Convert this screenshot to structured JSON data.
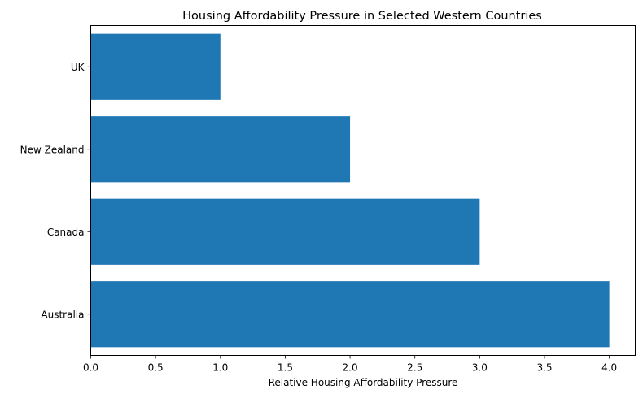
{
  "chart_data": {
    "type": "bar",
    "orientation": "horizontal",
    "title": "Housing Affordability Pressure in Selected Western Countries",
    "xlabel": "Relative Housing Affordability Pressure",
    "ylabel": "",
    "categories": [
      "Australia",
      "Canada",
      "New Zealand",
      "UK"
    ],
    "values": [
      4,
      3,
      2,
      1
    ],
    "xlim": [
      0,
      4.2
    ],
    "xticks": [
      0.0,
      0.5,
      1.0,
      1.5,
      2.0,
      2.5,
      3.0,
      3.5,
      4.0
    ],
    "xtick_labels": [
      "0.0",
      "0.5",
      "1.0",
      "1.5",
      "2.0",
      "2.5",
      "3.0",
      "3.5",
      "4.0"
    ],
    "bar_color": "#1f77b4",
    "grid": false,
    "legend": "none"
  }
}
